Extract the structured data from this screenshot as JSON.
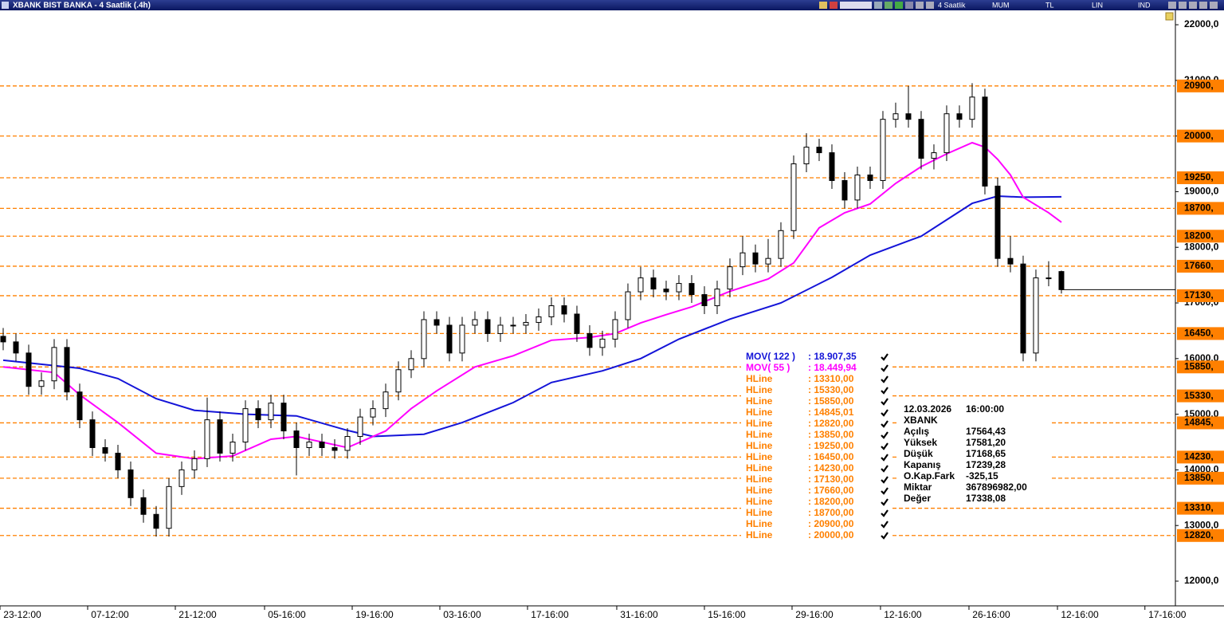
{
  "window": {
    "title": "XBANK BIST BANKA - 4 Saatlik (.4h)",
    "toolbar": [
      "4 Saatlik",
      "MUM",
      "TL",
      "LIN",
      "IND"
    ]
  },
  "chart_data": {
    "type": "candlestick",
    "xlim": [
      -0.25,
      91.94
    ],
    "xticks": [
      {
        "value": 1.5,
        "label": "23-12:00"
      },
      {
        "value": 8.375,
        "label": "07-12:00"
      },
      {
        "value": 15.25,
        "label": "21-12:00"
      },
      {
        "value": 22.25,
        "label": "05-16:00"
      },
      {
        "value": 29.125,
        "label": "19-16:00"
      },
      {
        "value": 36,
        "label": "03-16:00"
      },
      {
        "value": 42.875,
        "label": "17-16:00"
      },
      {
        "value": 49.875,
        "label": "31-16:00"
      },
      {
        "value": 56.75,
        "label": "15-16:00"
      },
      {
        "value": 63.625,
        "label": "29-16:00"
      },
      {
        "value": 70.56,
        "label": "12-16:00"
      },
      {
        "value": 77.5,
        "label": "26-16:00"
      },
      {
        "value": 84.44,
        "label": "12-16:00"
      },
      {
        "value": 91.3,
        "label": "17-16:00"
      }
    ],
    "ylim": [
      11556,
      22244
    ],
    "yticks": [
      {
        "value": 12000,
        "label": "12000,0"
      },
      {
        "value": 13000,
        "label": "13000,0"
      },
      {
        "value": 14000,
        "label": "14000,0"
      },
      {
        "value": 15000,
        "label": "15000,0"
      },
      {
        "value": 16000,
        "label": "16000,0"
      },
      {
        "value": 17000,
        "label": "17000,0"
      },
      {
        "value": 18000,
        "label": "18000,0"
      },
      {
        "value": 19000,
        "label": "19000,0"
      },
      {
        "value": 20000,
        "label": "20000,0"
      },
      {
        "value": 21000,
        "label": "21000,0"
      },
      {
        "value": 22000,
        "label": "22000,0"
      }
    ],
    "open": [
      16400,
      16300,
      16100,
      15500,
      15600,
      16200,
      15400,
      14900,
      14400,
      14300,
      14000,
      13500,
      13200,
      12950,
      13700,
      14000,
      14200,
      14900,
      14300,
      14500,
      15100,
      14900,
      15200,
      14700,
      14400,
      14500,
      14400,
      14350,
      14600,
      14950,
      15100,
      15400,
      15800,
      16000,
      16700,
      16600,
      16100,
      16600,
      16700,
      16450,
      16600,
      16600,
      16650,
      16750,
      16950,
      16800,
      16450,
      16200,
      16350,
      16700,
      17200,
      17450,
      17250,
      17200,
      17350,
      17150,
      16950,
      17250,
      17650,
      17900,
      17700,
      17800,
      18300,
      19500,
      19800,
      19700,
      19200,
      18850,
      19300,
      19200,
      20300,
      20400,
      20300,
      19600,
      19700,
      20400,
      20300,
      20700,
      19100,
      17800,
      17700,
      16100,
      17450,
      17564.43
    ],
    "high": [
      16550,
      16450,
      16250,
      15750,
      16350,
      16350,
      15550,
      15050,
      14550,
      14450,
      14150,
      13650,
      13350,
      13850,
      14150,
      14350,
      15300,
      15050,
      14650,
      15250,
      15250,
      15350,
      15350,
      14850,
      14650,
      14650,
      14550,
      14750,
      15100,
      15250,
      15550,
      15950,
      16150,
      16850,
      16850,
      16750,
      16750,
      16850,
      16850,
      16750,
      16750,
      16800,
      16900,
      17100,
      17100,
      16950,
      16600,
      16500,
      16850,
      17350,
      17650,
      17600,
      17400,
      17500,
      17500,
      17300,
      17400,
      17800,
      18200,
      18050,
      18150,
      18450,
      19650,
      20050,
      19950,
      19850,
      19350,
      19450,
      19450,
      20450,
      20600,
      20900,
      20450,
      19850,
      20550,
      20550,
      20950,
      20850,
      19250,
      18200,
      17850,
      17600,
      17750,
      17581.2
    ],
    "low": [
      16150,
      15950,
      15350,
      15350,
      15450,
      15250,
      14750,
      14250,
      14150,
      13850,
      13350,
      13050,
      12800,
      12800,
      13550,
      13850,
      14050,
      14150,
      14150,
      14350,
      14750,
      14750,
      14550,
      13900,
      14250,
      14250,
      14200,
      14200,
      14450,
      14800,
      14950,
      15250,
      15650,
      15850,
      16450,
      15950,
      15950,
      16450,
      16300,
      16300,
      16450,
      16450,
      16500,
      16600,
      16650,
      16300,
      16050,
      16050,
      16200,
      16550,
      17050,
      17100,
      17050,
      17050,
      17000,
      16800,
      16800,
      17100,
      17500,
      17550,
      17550,
      17650,
      18150,
      19350,
      19550,
      19050,
      18700,
      18700,
      19050,
      19050,
      20150,
      20150,
      19400,
      19400,
      19550,
      20150,
      20150,
      18950,
      17650,
      17550,
      15950,
      15950,
      17300,
      17168.65
    ],
    "close": [
      16300,
      16100,
      15500,
      15600,
      16200,
      15400,
      14900,
      14400,
      14300,
      14000,
      13500,
      13200,
      12950,
      13700,
      14000,
      14200,
      14900,
      14300,
      14500,
      15100,
      14900,
      15200,
      14700,
      14400,
      14500,
      14400,
      14350,
      14600,
      14950,
      15100,
      15400,
      15800,
      16000,
      16700,
      16600,
      16100,
      16600,
      16700,
      16450,
      16600,
      16600,
      16650,
      16750,
      16950,
      16800,
      16450,
      16200,
      16350,
      16700,
      17200,
      17450,
      17250,
      17200,
      17350,
      17150,
      16950,
      17250,
      17650,
      17900,
      17700,
      17800,
      18300,
      19500,
      19800,
      19700,
      19200,
      18850,
      19300,
      19200,
      20300,
      20400,
      20300,
      19600,
      19700,
      20400,
      20300,
      20700,
      19100,
      17800,
      17700,
      16100,
      17450,
      17450,
      17239.28
    ],
    "series": [
      {
        "name": "MOV( 122 )",
        "value_label": ": 18.907,35",
        "color": "#1414d8",
        "x": [
          0,
          6,
          9,
          12,
          15,
          19,
          23,
          27,
          29,
          33,
          36,
          40,
          43,
          47,
          50,
          53,
          57,
          61,
          65,
          68,
          72,
          76,
          78,
          80,
          83
        ],
        "values": [
          15970,
          15825,
          15640,
          15280,
          15070,
          15000,
          14970,
          14710,
          14600,
          14640,
          14850,
          15210,
          15570,
          15780,
          16000,
          16350,
          16710,
          17000,
          17460,
          17860,
          18200,
          18790,
          18920,
          18900,
          18907.35
        ]
      },
      {
        "name": "MOV( 55 )",
        "value_label": ": 18.449,94",
        "color": "#ff00ff",
        "x": [
          0,
          4,
          6,
          9,
          12,
          15,
          18,
          21,
          23,
          27,
          30,
          32,
          34,
          37,
          40,
          43,
          46,
          48,
          50,
          52,
          54,
          57,
          60,
          62,
          64,
          66,
          68,
          70,
          72,
          74,
          76,
          77,
          78,
          79,
          80,
          82,
          83
        ],
        "values": [
          15850,
          15750,
          15350,
          14850,
          14300,
          14200,
          14250,
          14550,
          14600,
          14400,
          14700,
          15100,
          15420,
          15850,
          16050,
          16330,
          16380,
          16450,
          16640,
          16790,
          16930,
          17210,
          17430,
          17720,
          18350,
          18620,
          18780,
          19150,
          19450,
          19680,
          19880,
          19800,
          19580,
          19300,
          18900,
          18620,
          18449.94
        ]
      }
    ],
    "hlines": [
      {
        "name": "HLine",
        "value": 13310,
        "value_label": ": 13310,00",
        "axis_label": "13310,"
      },
      {
        "name": "HLine",
        "value": 15330,
        "value_label": ": 15330,00",
        "axis_label": "15330,"
      },
      {
        "name": "HLine",
        "value": 15850,
        "value_label": ": 15850,00",
        "axis_label": "15850,"
      },
      {
        "name": "HLine",
        "value": 14845.01,
        "value_label": ": 14845,01",
        "axis_label": "14845,"
      },
      {
        "name": "HLine",
        "value": 12820,
        "value_label": ": 12820,00",
        "axis_label": "12820,"
      },
      {
        "name": "HLine",
        "value": 13850,
        "value_label": ": 13850,00",
        "axis_label": "13850,"
      },
      {
        "name": "HLine",
        "value": 19250,
        "value_label": ": 19250,00",
        "axis_label": "19250,"
      },
      {
        "name": "HLine",
        "value": 16450,
        "value_label": ": 16450,00",
        "axis_label": "16450,"
      },
      {
        "name": "HLine",
        "value": 14230,
        "value_label": ": 14230,00",
        "axis_label": "14230,"
      },
      {
        "name": "HLine",
        "value": 17130,
        "value_label": ": 17130,00",
        "axis_label": "17130,"
      },
      {
        "name": "HLine",
        "value": 17660,
        "value_label": ": 17660,00",
        "axis_label": "17660,"
      },
      {
        "name": "HLine",
        "value": 18200,
        "value_label": ": 18200,00",
        "axis_label": "18200,"
      },
      {
        "name": "HLine",
        "value": 18700,
        "value_label": ": 18700,00",
        "axis_label": "18700,"
      },
      {
        "name": "HLine",
        "value": 20900,
        "value_label": ": 20900,00",
        "axis_label": "20900,"
      },
      {
        "name": "HLine",
        "value": 20000,
        "value_label": ": 20000,00",
        "axis_label": "20000,"
      }
    ],
    "hline_color": "#ff8000",
    "info": {
      "date": "12.03.2026",
      "time": "16:00:00",
      "symbol": "XBANK",
      "rows": [
        {
          "label": "Açılış",
          "value": "17564,43"
        },
        {
          "label": "Yüksek",
          "value": "17581,20"
        },
        {
          "label": "Düşük",
          "value": "17168,65"
        },
        {
          "label": "Kapanış",
          "value": "17239,28"
        },
        {
          "label": "O.Kap.Fark",
          "value": "-325,15"
        },
        {
          "label": "Miktar",
          "value": "367896982,00"
        },
        {
          "label": "Değer",
          "value": "17338,08"
        }
      ]
    }
  }
}
